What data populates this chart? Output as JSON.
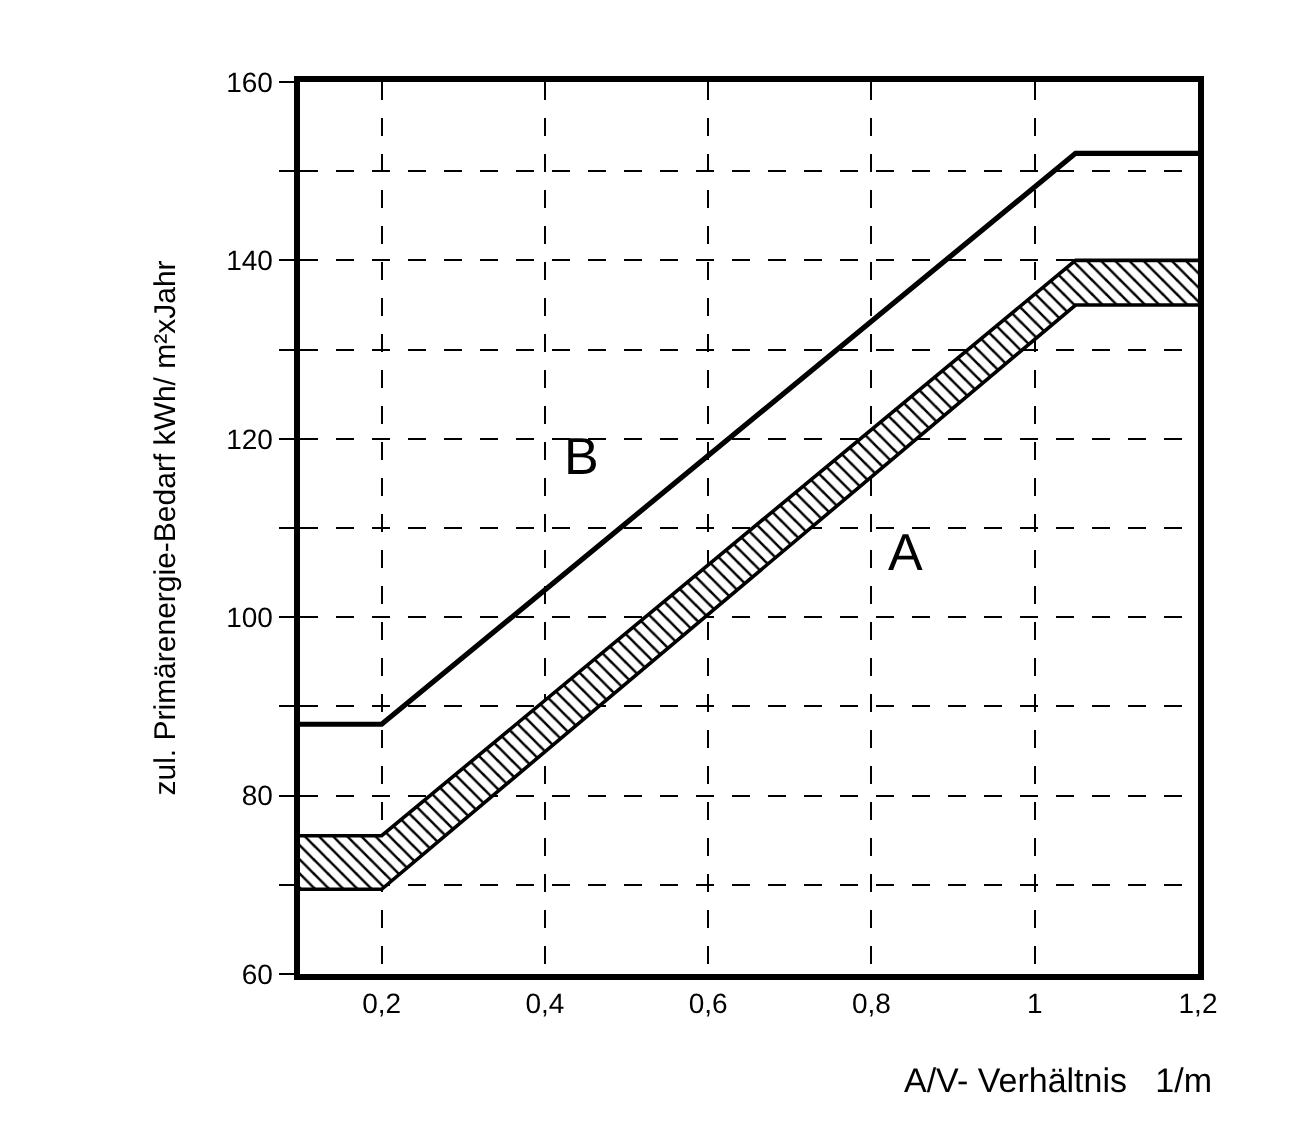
{
  "chart_data": {
    "type": "line",
    "xlabel": "A/V- Verhältnis   1/m",
    "ylabel": "zul. Primärenergie-Bedarf kWh/ m²xJahr",
    "x": [
      0.1,
      0.2,
      1.05,
      1.2
    ],
    "series": [
      {
        "name": "B",
        "type": "line",
        "color": "#000000",
        "values": [
          88,
          88,
          152,
          152
        ]
      },
      {
        "name": "A",
        "color": "#000000",
        "values": [
          69.5,
          69.5,
          135,
          135
        ],
        "lower": [
          69.5,
          69.5,
          135,
          135
        ],
        "upper": [
          75.5,
          75.5,
          140,
          140
        ]
      },
      {
        "type": "line",
        "color": "#000000",
        "values": [
          75.5,
          75.5,
          140,
          140
        ]
      }
    ],
    "xlim": [
      0.1,
      1.2
    ],
    "xticks": [
      {
        "value": 0.2,
        "label": "0,2"
      },
      {
        "value": 0.4,
        "label": "0,4"
      },
      {
        "value": 0.6,
        "label": "0,6"
      },
      {
        "value": 0.8,
        "label": "0,8"
      },
      1,
      {
        "value": 1.2,
        "label": "1,2"
      }
    ],
    "ylim": [
      60,
      160
    ],
    "yticks": [
      60,
      {
        "value": 70,
        "label": null
      },
      80,
      {
        "value": 90,
        "label": null
      },
      100,
      {
        "value": 110,
        "label": null
      },
      120,
      {
        "value": 130,
        "label": null
      },
      140,
      {
        "value": 150,
        "label": null
      },
      160
    ],
    "grid": true,
    "line_style": "solid",
    "marker": "none",
    "legend": false
  }
}
